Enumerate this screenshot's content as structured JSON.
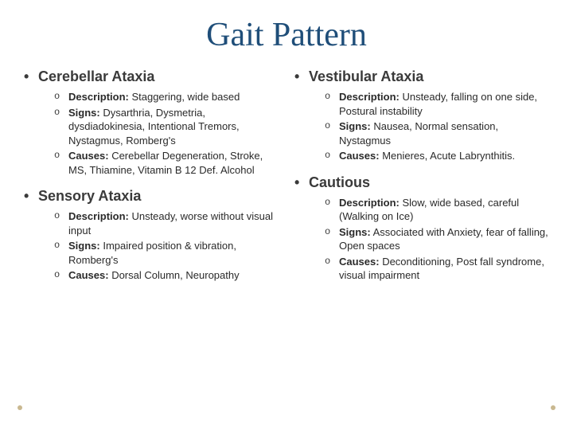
{
  "title": "Gait Pattern",
  "leftColumn": [
    {
      "heading": "Cerebellar Ataxia",
      "items": [
        {
          "label": "Description:",
          "text": " Staggering, wide based"
        },
        {
          "label": "Signs:",
          "text": " Dysarthria, Dysmetria, dysdiadokinesia, Intentional Tremors, Nystagmus, Romberg's"
        },
        {
          "label": "Causes:",
          "text": " Cerebellar Degeneration, Stroke, MS, Thiamine, Vitamin B 12 Def. Alcohol"
        }
      ]
    },
    {
      "heading": "Sensory Ataxia",
      "items": [
        {
          "label": "Description:",
          "text": " Unsteady, worse without visual input"
        },
        {
          "label": "Signs:",
          "text": " Impaired position & vibration, Romberg's"
        },
        {
          "label": "Causes:",
          "text": " Dorsal Column, Neuropathy"
        }
      ]
    }
  ],
  "rightColumn": [
    {
      "heading": "Vestibular Ataxia",
      "items": [
        {
          "label": "Description:",
          "text": " Unsteady, falling on one side, Postural instability"
        },
        {
          "label": "Signs:",
          "text": " Nausea, Normal sensation, Nystagmus"
        },
        {
          "label": "Causes:",
          "text": " Menieres, Acute Labrynthitis."
        }
      ]
    },
    {
      "heading": "Cautious",
      "items": [
        {
          "label": "Description:",
          "text": " Slow, wide based, careful (Walking on Ice)"
        },
        {
          "label": "Signs:",
          "text": " Associated with Anxiety, fear of falling, Open spaces"
        },
        {
          "label": "Causes:",
          "text": " Deconditioning, Post fall syndrome, visual impairment"
        }
      ]
    }
  ],
  "colors": {
    "titleColor": "#1f4e79",
    "textColor": "#2a2a2a",
    "dotColor": "#c9b890",
    "background": "#ffffff"
  }
}
